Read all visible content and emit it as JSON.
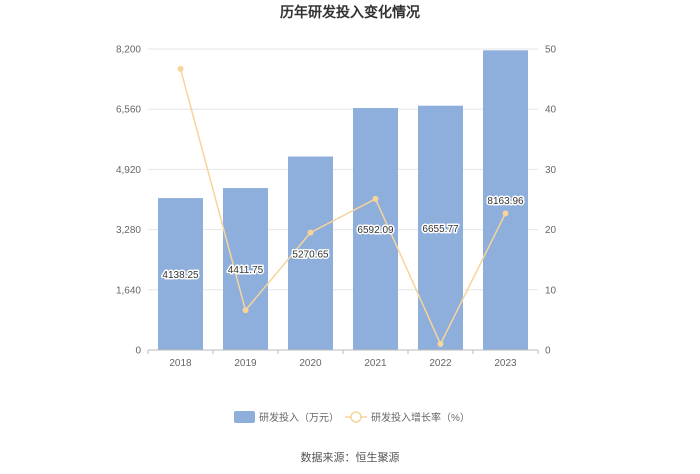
{
  "chart_data": {
    "type": "bar",
    "title": "历年研发投入变化情况",
    "categories": [
      "2018",
      "2019",
      "2020",
      "2021",
      "2022",
      "2023"
    ],
    "series": [
      {
        "name": "研发投入（万元）",
        "type": "bar",
        "axis": "left",
        "values": [
          4138.25,
          4411.75,
          5270.65,
          6592.09,
          6655.77,
          8163.96
        ],
        "labels": [
          "4138.25",
          "4411.75",
          "5270.65",
          "6592.09",
          "6655.77",
          "8163.96"
        ],
        "color": "#8eaedb"
      },
      {
        "name": "研发投入增长率（%）",
        "type": "line",
        "axis": "right",
        "values": [
          46.7,
          6.6,
          19.5,
          25.1,
          1.0,
          22.7
        ],
        "color": "#f7d49b"
      }
    ],
    "y_left": {
      "ylim": [
        0,
        8200
      ],
      "ticks": [
        "0",
        "1,640",
        "3,280",
        "4,920",
        "6,560",
        "8,200"
      ]
    },
    "y_right": {
      "ylim": [
        0,
        50
      ],
      "ticks": [
        "0",
        "10",
        "20",
        "30",
        "40",
        "50"
      ]
    },
    "legend_position": "bottom",
    "grid": true
  },
  "source": "数据来源：恒生聚源"
}
